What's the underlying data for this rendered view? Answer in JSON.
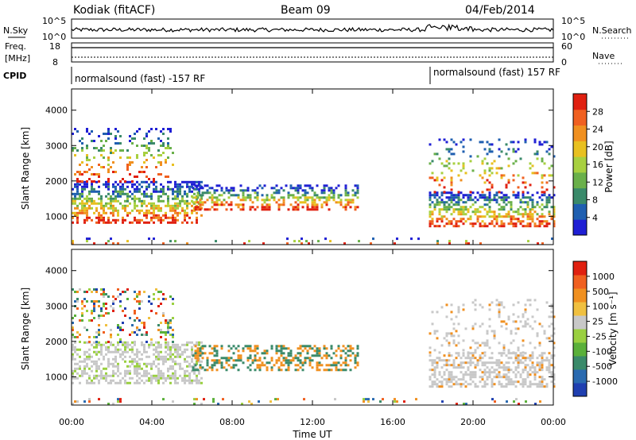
{
  "header": {
    "station": "Kodiak (fitACF)",
    "beam": "Beam 09",
    "date": "04/Feb/2014"
  },
  "top_panels": {
    "nsky_label": "N.Sky",
    "nsky_ticks": [
      "10^5",
      "10^0"
    ],
    "nsearch_label": "N.Search",
    "nsearch_ticks": [
      "10^5",
      "10^0"
    ],
    "freq_label": "Freq.",
    "freq_unit": "[MHz]",
    "freq_ticks": [
      "18",
      "8"
    ],
    "nave_label": "Nave",
    "nave_ticks": [
      "60",
      "0"
    ],
    "cpid_label": "CPID",
    "cpid_entries": [
      {
        "text": "normalsound (fast) -157 RF",
        "start_hour": 0
      },
      {
        "text": "normalsound (fast) 157 RF",
        "start_hour": 18
      }
    ]
  },
  "colors": {
    "power": [
      "#1f1fd4",
      "#1f5fb0",
      "#3a8a6a",
      "#6ab04a",
      "#a8d040",
      "#e8c020",
      "#f09020",
      "#f06020",
      "#e02010"
    ],
    "velocity": [
      "#1f3fb0",
      "#2a6ab0",
      "#3a8a6a",
      "#5ab03a",
      "#9ad040",
      "#c8c8c8",
      "#f0c040",
      "#f09020",
      "#f06020",
      "#e02010"
    ],
    "ground": "#c8c8c8"
  },
  "chart_data": [
    {
      "type": "heatmap",
      "name": "power-panel",
      "ylabel": "Slant Range [km]",
      "colorbar_label": "Power [dB]",
      "colorbar_ticks": [
        "28",
        "24",
        "20",
        "16",
        "12",
        "8",
        "4"
      ],
      "colorbar_range": [
        0,
        32
      ],
      "x_hours": [
        0,
        24
      ],
      "ylim": [
        200,
        4600
      ],
      "yticks": [
        "4000",
        "3000",
        "2000",
        "1000"
      ],
      "ytick_values": [
        4000,
        3000,
        2000,
        1000
      ]
    },
    {
      "type": "heatmap",
      "name": "velocity-panel",
      "ylabel": "Slant Range [km]",
      "colorbar_label": "Velocity [m s⁻¹]",
      "colorbar_ticks": [
        "1000",
        "500",
        "100",
        "25",
        "-25",
        "-100",
        "-500",
        "-1000"
      ],
      "x_hours": [
        0,
        24
      ],
      "ylim": [
        200,
        4600
      ],
      "yticks": [
        "4000",
        "3000",
        "2000",
        "1000"
      ],
      "ytick_values": [
        4000,
        3000,
        2000,
        1000
      ]
    }
  ],
  "xaxis": {
    "label": "Time UT",
    "ticks": [
      "00:00",
      "04:00",
      "08:00",
      "12:00",
      "16:00",
      "20:00",
      "00:00"
    ],
    "tick_hours": [
      0,
      4,
      8,
      12,
      16,
      20,
      24
    ]
  }
}
